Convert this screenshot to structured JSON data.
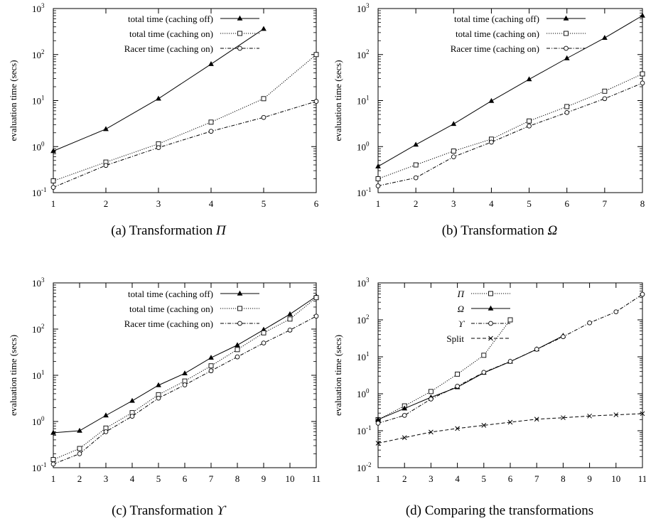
{
  "chart_data": [
    {
      "id": "a",
      "type": "line",
      "caption": "(a) Transformation Π",
      "ylabel": "evaluation time (secs)",
      "xlabel": "",
      "yscale": "log",
      "ylim_exp": [
        -1,
        3
      ],
      "xlim": [
        1,
        6
      ],
      "x_ticks": [
        "1",
        "2",
        "3",
        "4",
        "5",
        "6"
      ],
      "legend_position": "top-left",
      "series": [
        {
          "name": "total time (caching off)",
          "marker": "triangle",
          "dash": "solid",
          "x": [
            1,
            2,
            3,
            4,
            5
          ],
          "y": [
            0.8,
            2.4,
            11,
            62,
            360
          ]
        },
        {
          "name": "total time (caching on)",
          "marker": "square",
          "dash": "dotted",
          "x": [
            1,
            2,
            3,
            4,
            5,
            6
          ],
          "y": [
            0.18,
            0.46,
            1.15,
            3.4,
            11,
            100
          ]
        },
        {
          "name": "Racer time (caching on)",
          "marker": "circle",
          "dash": "dashdot",
          "x": [
            1,
            2,
            3,
            4,
            5,
            6
          ],
          "y": [
            0.13,
            0.39,
            0.95,
            2.15,
            4.3,
            9.6
          ]
        }
      ]
    },
    {
      "id": "b",
      "type": "line",
      "caption": "(b) Transformation Ω",
      "ylabel": "evaluation time (secs)",
      "xlabel": "",
      "yscale": "log",
      "ylim_exp": [
        -1,
        3
      ],
      "xlim": [
        1,
        8
      ],
      "x_ticks": [
        "1",
        "2",
        "3",
        "4",
        "5",
        "6",
        "7",
        "8"
      ],
      "legend_position": "top-left",
      "series": [
        {
          "name": "total time (caching off)",
          "marker": "triangle",
          "dash": "solid",
          "x": [
            1,
            2,
            3,
            4,
            5,
            6,
            7,
            8
          ],
          "y": [
            0.37,
            1.1,
            3.1,
            9.8,
            29,
            83,
            230,
            700
          ]
        },
        {
          "name": "total time (caching on)",
          "marker": "square",
          "dash": "dotted",
          "x": [
            1,
            2,
            3,
            4,
            5,
            6,
            7,
            8
          ],
          "y": [
            0.2,
            0.4,
            0.8,
            1.45,
            3.6,
            7.4,
            16,
            38
          ]
        },
        {
          "name": "Racer time (caching on)",
          "marker": "circle",
          "dash": "dashdot",
          "x": [
            1,
            2,
            3,
            4,
            5,
            6,
            7,
            8
          ],
          "y": [
            0.14,
            0.21,
            0.6,
            1.25,
            2.8,
            5.5,
            11,
            24
          ]
        }
      ]
    },
    {
      "id": "c",
      "type": "line",
      "caption": "(c) Transformation ϒ",
      "ylabel": "evaluation time (secs)",
      "xlabel": "",
      "yscale": "log",
      "ylim_exp": [
        -1,
        3
      ],
      "xlim": [
        1,
        11
      ],
      "x_ticks": [
        "1",
        "2",
        "3",
        "4",
        "5",
        "6",
        "7",
        "8",
        "9",
        "10",
        "11"
      ],
      "legend_position": "top-left",
      "series": [
        {
          "name": "total time (caching off)",
          "marker": "triangle",
          "dash": "solid",
          "x": [
            1,
            2,
            3,
            4,
            5,
            6,
            7,
            8,
            9,
            10,
            11
          ],
          "y": [
            0.57,
            0.63,
            1.35,
            2.8,
            6.1,
            11,
            24,
            45,
            97,
            210,
            510
          ]
        },
        {
          "name": "total time (caching on)",
          "marker": "square",
          "dash": "dotted",
          "x": [
            1,
            2,
            3,
            4,
            5,
            6,
            7,
            8,
            9,
            10,
            11
          ],
          "y": [
            0.15,
            0.26,
            0.72,
            1.55,
            3.8,
            7.5,
            16,
            36,
            83,
            165,
            480
          ]
        },
        {
          "name": "Racer time (caching on)",
          "marker": "circle",
          "dash": "dashdot",
          "x": [
            1,
            2,
            3,
            4,
            5,
            6,
            7,
            8,
            9,
            10,
            11
          ],
          "y": [
            0.12,
            0.2,
            0.6,
            1.3,
            3.2,
            6.2,
            12.5,
            25,
            50,
            95,
            190
          ]
        }
      ]
    },
    {
      "id": "d",
      "type": "line",
      "caption": "(d) Comparing the transformations",
      "ylabel": "evaluation time (secs)",
      "xlabel": "",
      "yscale": "log",
      "ylim_exp": [
        -2,
        3
      ],
      "xlim": [
        1,
        11
      ],
      "x_ticks": [
        "1",
        "2",
        "3",
        "4",
        "5",
        "6",
        "7",
        "8",
        "9",
        "10",
        "11"
      ],
      "legend_position": "top-left",
      "series": [
        {
          "name": "Π",
          "italic": true,
          "marker": "square",
          "dash": "dotted",
          "x": [
            1,
            2,
            3,
            4,
            5,
            6
          ],
          "y": [
            0.2,
            0.47,
            1.15,
            3.4,
            11,
            100
          ]
        },
        {
          "name": "Ω",
          "italic": true,
          "marker": "triangle",
          "dash": "solid",
          "x": [
            1,
            2,
            3,
            4,
            5,
            6,
            7,
            8
          ],
          "y": [
            0.2,
            0.4,
            0.8,
            1.5,
            3.7,
            7.4,
            16,
            37
          ]
        },
        {
          "name": "ϒ",
          "italic": true,
          "marker": "circle",
          "dash": "dashdot",
          "x": [
            1,
            2,
            3,
            4,
            5,
            6,
            7,
            8,
            9,
            10,
            11
          ],
          "y": [
            0.16,
            0.26,
            0.72,
            1.6,
            3.8,
            7.5,
            16,
            35,
            83,
            165,
            490
          ]
        },
        {
          "name": "Split",
          "italic": false,
          "marker": "cross",
          "dash": "dashed",
          "x": [
            1,
            2,
            3,
            4,
            5,
            6,
            7,
            8,
            9,
            10,
            11
          ],
          "y": [
            0.046,
            0.065,
            0.092,
            0.115,
            0.14,
            0.17,
            0.205,
            0.225,
            0.25,
            0.27,
            0.29
          ]
        }
      ]
    }
  ]
}
